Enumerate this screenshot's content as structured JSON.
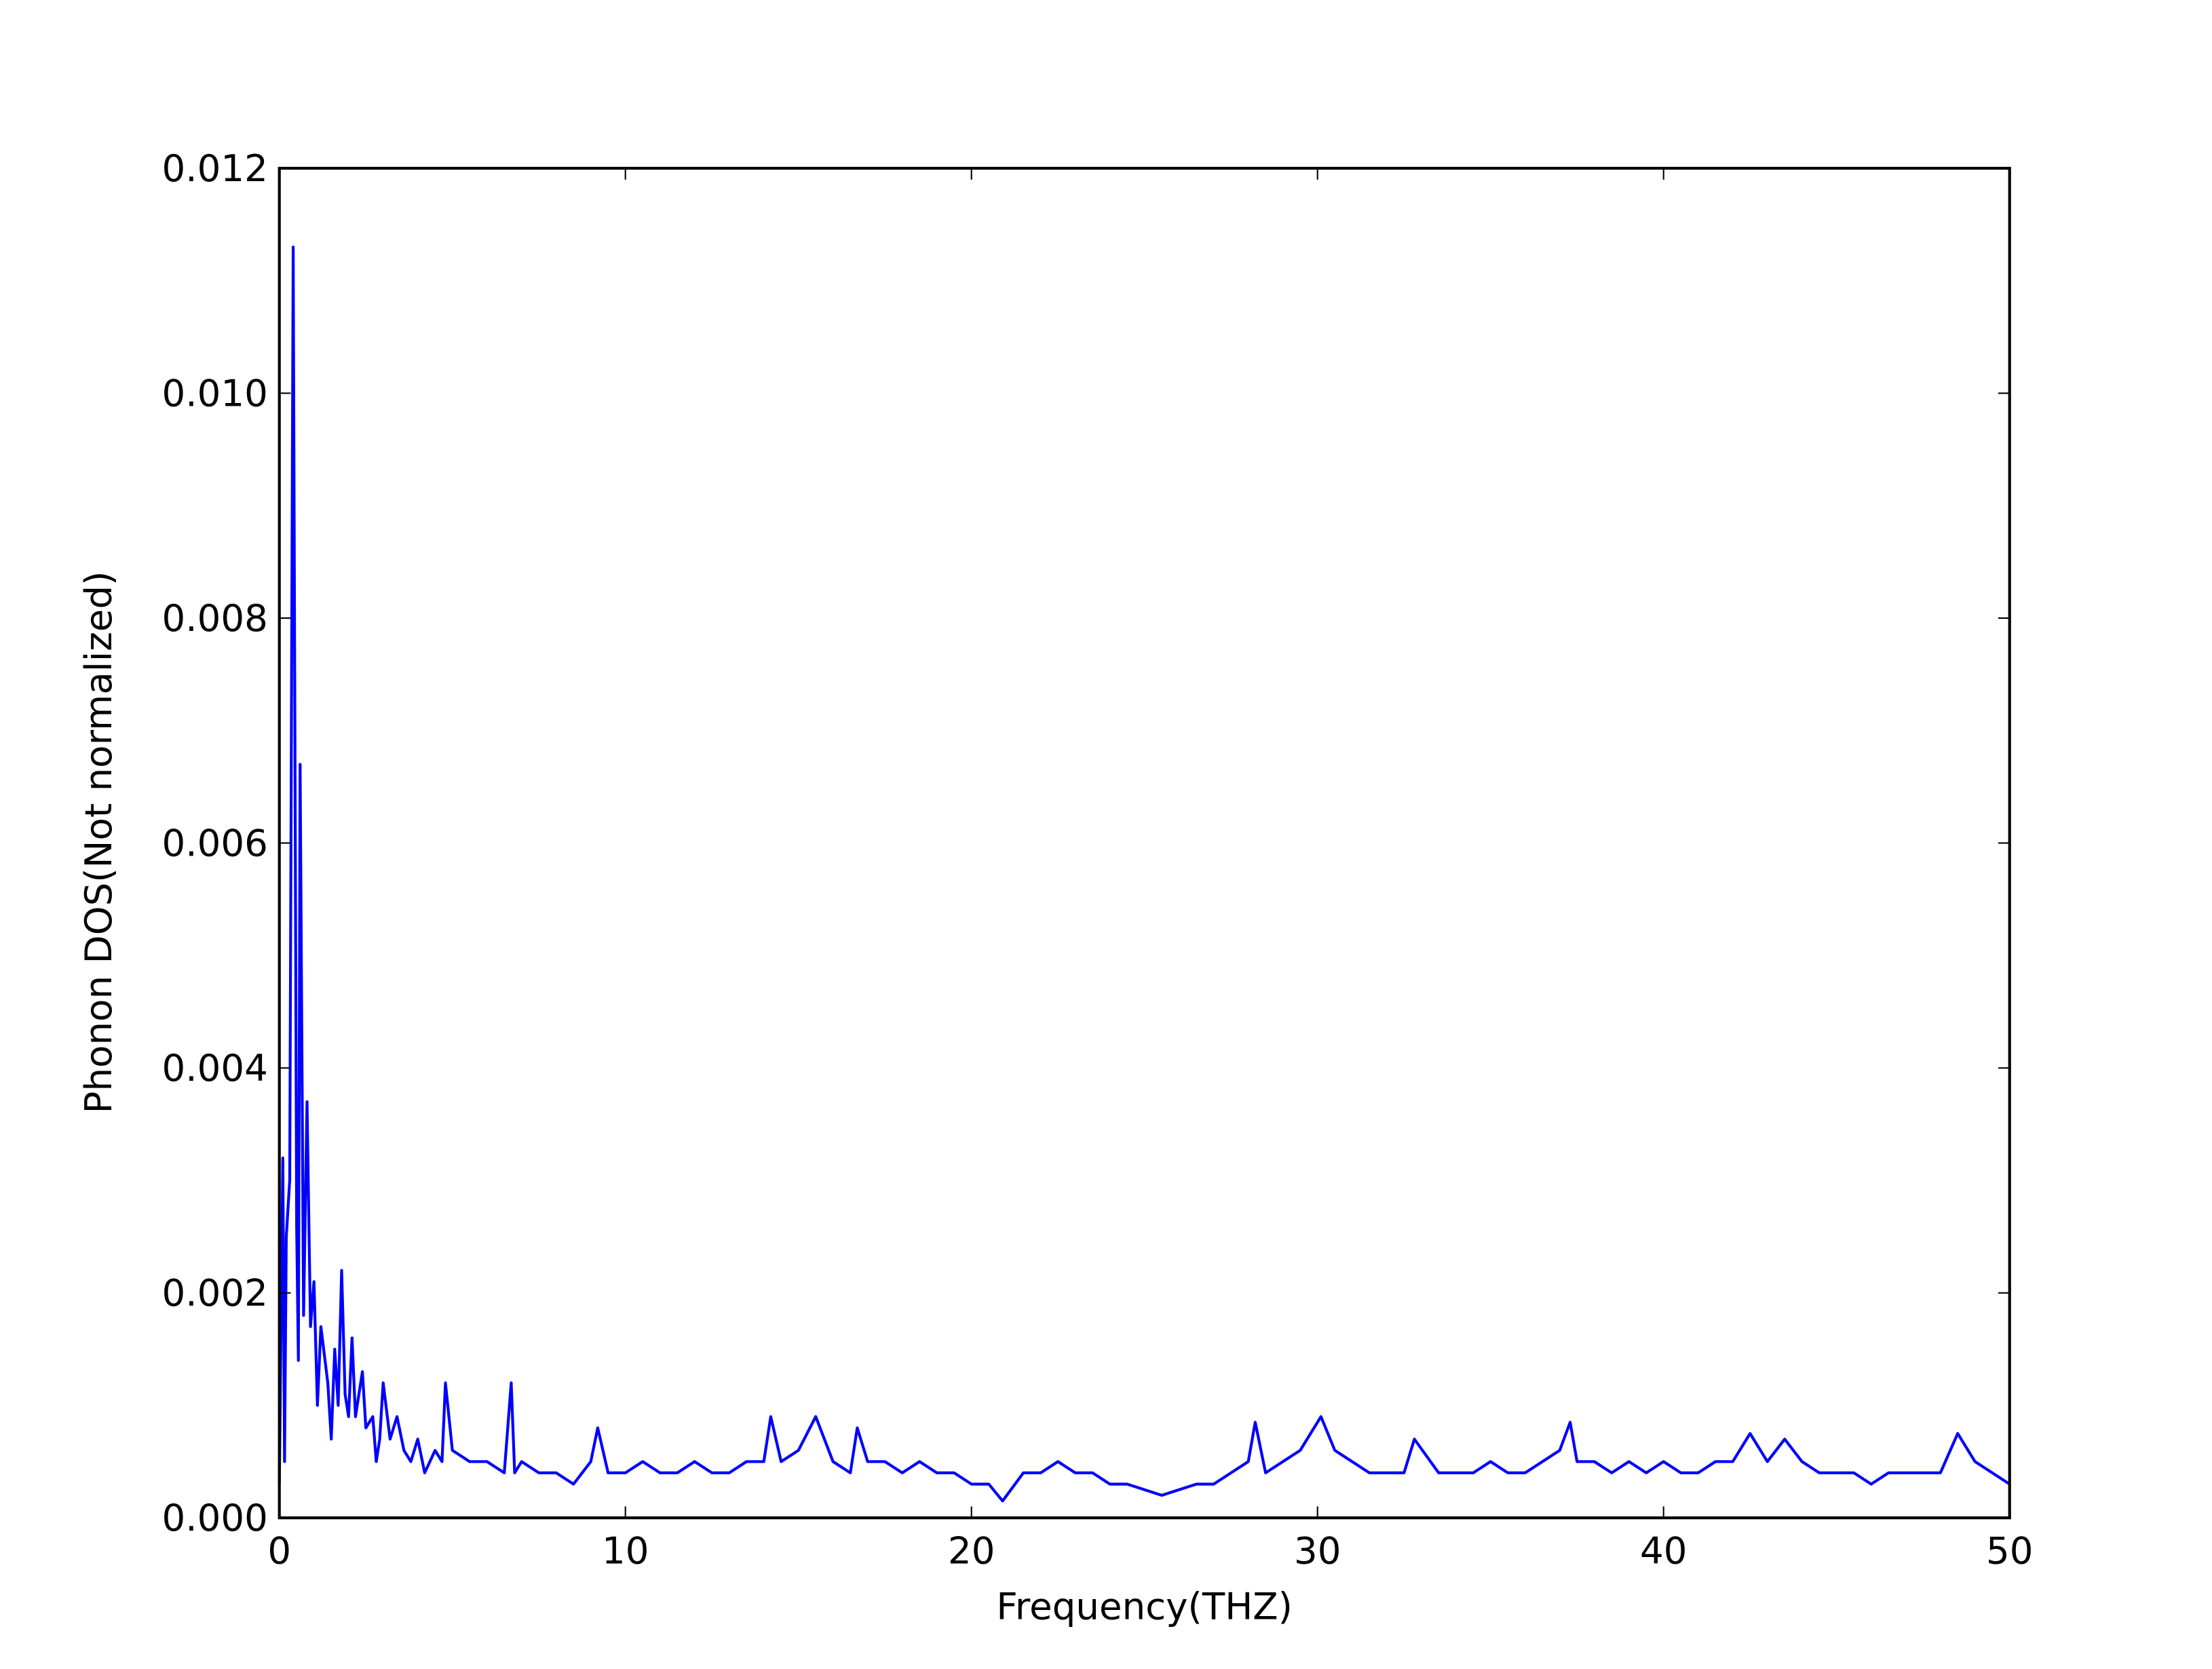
{
  "chart_data": {
    "type": "line",
    "xlabel": "Frequency(THZ)",
    "ylabel": "Phonon DOS(Not normalized)",
    "color": "#0000ff",
    "xlim": [
      0,
      50
    ],
    "ylim": [
      0,
      0.012
    ],
    "xticks": [
      0,
      10,
      20,
      30,
      40,
      50
    ],
    "yticks": [
      {
        "value": 0,
        "label": "0.000"
      },
      {
        "value": 0.002,
        "label": "0.002"
      },
      {
        "value": 0.004,
        "label": "0.004"
      },
      {
        "value": 0.006,
        "label": "0.006"
      },
      {
        "value": 0.008,
        "label": "0.008"
      },
      {
        "value": 0.01,
        "label": "0.010"
      },
      {
        "value": 0.012,
        "label": "0.012"
      }
    ],
    "grid": false,
    "x": [
      0,
      0.1,
      0.15,
      0.2,
      0.3,
      0.4,
      0.5,
      0.55,
      0.6,
      0.7,
      0.8,
      0.9,
      1.0,
      1.1,
      1.2,
      1.4,
      1.5,
      1.6,
      1.7,
      1.8,
      1.9,
      2.0,
      2.1,
      2.2,
      2.4,
      2.5,
      2.7,
      2.8,
      2.9,
      3.0,
      3.2,
      3.4,
      3.6,
      3.8,
      4.0,
      4.2,
      4.5,
      4.7,
      4.8,
      5.0,
      5.5,
      6.0,
      6.5,
      6.7,
      6.8,
      7.0,
      7.5,
      8.0,
      8.5,
      9.0,
      9.2,
      9.5,
      10,
      10.5,
      11,
      11.5,
      12,
      12.5,
      13,
      13.5,
      14,
      14.2,
      14.5,
      15,
      15.5,
      16,
      16.5,
      16.7,
      17,
      17.5,
      18,
      18.5,
      19,
      19.5,
      20,
      20.5,
      20.9,
      21.5,
      22,
      22.5,
      23,
      23.5,
      24,
      24.5,
      25,
      25.5,
      26,
      26.5,
      27,
      27.5,
      28,
      28.2,
      28.5,
      29,
      29.5,
      30.1,
      30.5,
      31,
      31.5,
      32,
      32.5,
      32.8,
      33.5,
      34,
      34.5,
      35,
      35.5,
      36,
      36.5,
      37,
      37.3,
      37.5,
      38,
      38.5,
      39,
      39.5,
      40,
      40.5,
      41,
      41.5,
      42,
      42.5,
      43,
      43.5,
      44,
      44.5,
      45,
      45.5,
      46,
      46.5,
      47,
      47.5,
      48,
      48.5,
      49,
      49.5,
      50
    ],
    "values": [
      0.0003,
      0.0032,
      0.0005,
      0.0025,
      0.003,
      0.0113,
      0.0026,
      0.0014,
      0.0067,
      0.0018,
      0.0037,
      0.0017,
      0.0021,
      0.001,
      0.0017,
      0.0012,
      0.0007,
      0.0015,
      0.001,
      0.0022,
      0.0011,
      0.0009,
      0.0016,
      0.0009,
      0.0013,
      0.0008,
      0.0009,
      0.0005,
      0.0007,
      0.0012,
      0.0007,
      0.0009,
      0.0006,
      0.0005,
      0.0007,
      0.0004,
      0.0006,
      0.0005,
      0.0012,
      0.0006,
      0.0005,
      0.0005,
      0.0004,
      0.0012,
      0.0004,
      0.0005,
      0.0004,
      0.0004,
      0.0003,
      0.0005,
      0.0008,
      0.0004,
      0.0004,
      0.0005,
      0.0004,
      0.0004,
      0.0005,
      0.0004,
      0.0004,
      0.0005,
      0.0005,
      0.0009,
      0.0005,
      0.0006,
      0.0009,
      0.0005,
      0.0004,
      0.0008,
      0.0005,
      0.0005,
      0.0004,
      0.0005,
      0.0004,
      0.0004,
      0.0003,
      0.0003,
      0.00015,
      0.0004,
      0.0004,
      0.0005,
      0.0004,
      0.0004,
      0.0003,
      0.0003,
      0.00025,
      0.0002,
      0.00025,
      0.0003,
      0.0003,
      0.0004,
      0.0005,
      0.00085,
      0.0004,
      0.0005,
      0.0006,
      0.0009,
      0.0006,
      0.0005,
      0.0004,
      0.0004,
      0.0004,
      0.0007,
      0.0004,
      0.0004,
      0.0004,
      0.0005,
      0.0004,
      0.0004,
      0.0005,
      0.0006,
      0.00085,
      0.0005,
      0.0005,
      0.0004,
      0.0005,
      0.0004,
      0.0005,
      0.0004,
      0.0004,
      0.0005,
      0.0005,
      0.00075,
      0.0005,
      0.0007,
      0.0005,
      0.0004,
      0.0004,
      0.0004,
      0.0003,
      0.0004,
      0.0004,
      0.0004,
      0.0004,
      0.00075,
      0.0005,
      0.0004,
      0.0003
    ]
  }
}
